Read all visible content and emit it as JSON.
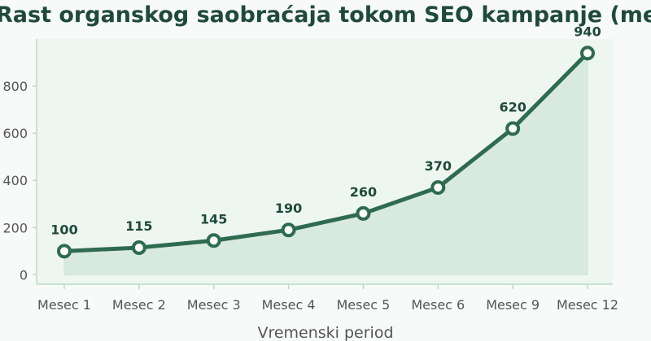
{
  "chart_data": {
    "type": "line",
    "title": "Rast organskog saobraćaja tokom SEO kampanje (mesečno)",
    "xlabel": "Vremenski period",
    "ylabel": "",
    "categories": [
      "Mesec 1",
      "Mesec 2",
      "Mesec 3",
      "Mesec 4",
      "Mesec 5",
      "Mesec 6",
      "Mesec 9",
      "Mesec 12"
    ],
    "series": [
      {
        "values": [
          100,
          115,
          145,
          190,
          260,
          370,
          620,
          940
        ]
      }
    ],
    "data_labels": [
      "100",
      "115",
      "145",
      "190",
      "260",
      "370",
      "620",
      "940"
    ],
    "yticks": [
      0,
      200,
      400,
      600,
      800
    ],
    "ylim": [
      -40,
      1000
    ],
    "grid": false,
    "area_fill": true,
    "colors": {
      "line": "#2e6b4f",
      "area": "#d8e9df",
      "plot_bg": "#eef6f1",
      "marker_fill": "#ffffff",
      "axis": "#b9dcc8"
    }
  }
}
